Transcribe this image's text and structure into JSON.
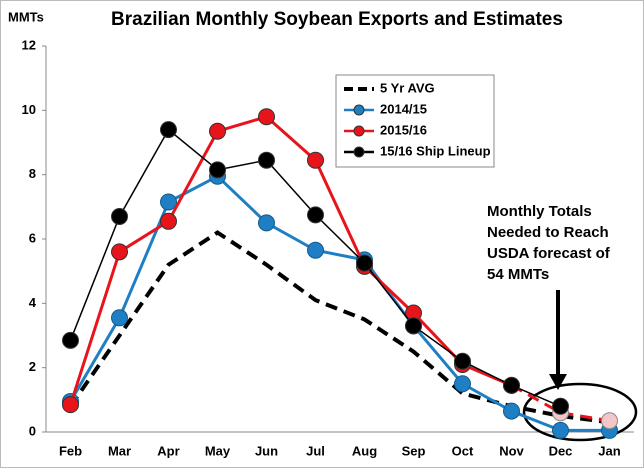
{
  "chart_data": {
    "type": "line",
    "title": "Brazilian Monthly Soybean Exports and Estimates",
    "y_label": "MMTs",
    "categories": [
      "Feb",
      "Mar",
      "Apr",
      "May",
      "Jun",
      "Jul",
      "Aug",
      "Sep",
      "Oct",
      "Nov",
      "Dec",
      "Jan"
    ],
    "series": [
      {
        "name": "5 Yr AVG",
        "color": "#000000",
        "dashed": true,
        "marker": false,
        "values": [
          0.8,
          3.0,
          5.2,
          6.2,
          5.2,
          4.1,
          3.5,
          2.5,
          1.2,
          0.8,
          0.5,
          0.3
        ]
      },
      {
        "name": "2014/15",
        "color": "#1f7fc4",
        "marker": true,
        "values": [
          0.95,
          3.55,
          7.15,
          7.95,
          6.5,
          5.65,
          5.35,
          3.3,
          1.5,
          0.65,
          0.05,
          0.05
        ]
      },
      {
        "name": "2015/16",
        "color": "#e8141b",
        "marker": true,
        "values": [
          0.85,
          5.6,
          6.55,
          9.35,
          9.8,
          8.45,
          5.15,
          3.7,
          2.1,
          1.45,
          0.6,
          0.35
        ]
      },
      {
        "name": "15/16 Ship Lineup",
        "color": "#000000",
        "marker": true,
        "values": [
          2.85,
          6.7,
          9.4,
          8.15,
          8.45,
          6.75,
          5.25,
          3.3,
          2.2,
          1.45,
          0.8,
          null
        ]
      }
    ],
    "ylim": [
      0,
      12
    ],
    "yticks": [
      0,
      2,
      4,
      6,
      8,
      10,
      12
    ],
    "annotation": [
      "Monthly Totals",
      "Needed to Reach",
      "USDA forecast of",
      "54 MMTs"
    ]
  }
}
